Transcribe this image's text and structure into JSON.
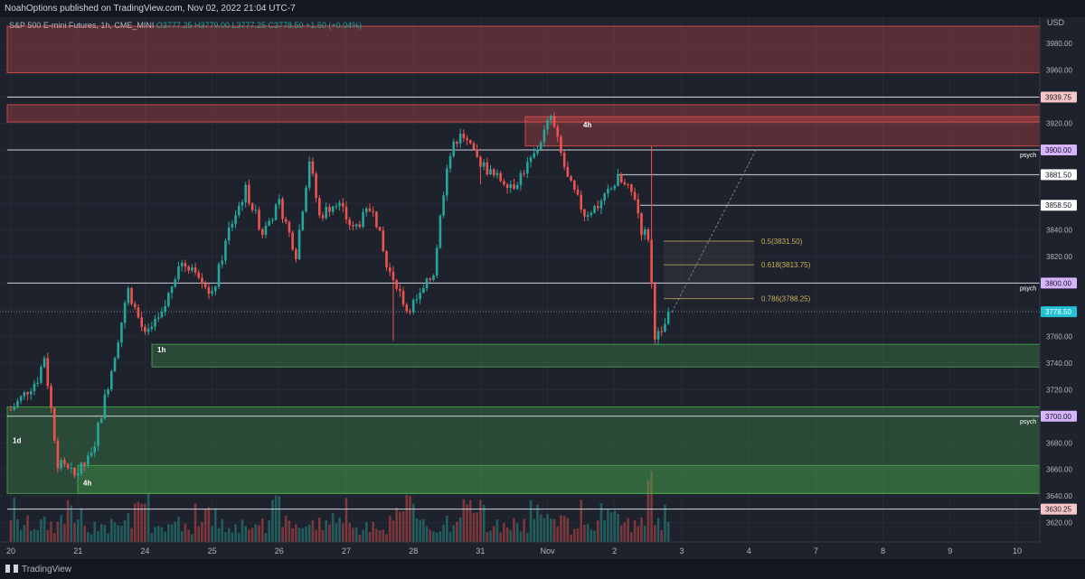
{
  "header": {
    "text": "NoahOptions published on TradingView.com, Nov 02, 2022 21:04 UTC-7"
  },
  "legend": {
    "symbol": "S&P 500 E-mini Futures, 1h, CME_MINI",
    "ohlc": "O3777.25 H3779.00 L3777.25 C3778.50 +1.50 (+0.04%)"
  },
  "footer": {
    "brand": "TradingView"
  },
  "colors": {
    "background": "#1e222d",
    "up": "#26a69a",
    "down": "#ef5350",
    "supply": "#ef5350",
    "demand": "#4caf50"
  },
  "chart_data": {
    "type": "candlestick",
    "currency_label": "USD",
    "ylim": [
      3613,
      3993
    ],
    "yticks": [
      3620,
      3640,
      3660,
      3680,
      3700,
      3720,
      3740,
      3760,
      3780,
      3800,
      3820,
      3840,
      3860,
      3880,
      3900,
      3920,
      3940,
      3960,
      3980
    ],
    "x_labels": [
      "20",
      "21",
      "24",
      "25",
      "26",
      "27",
      "28",
      "31",
      "Nov",
      "2",
      "3",
      "4",
      "7",
      "8",
      "9",
      "10"
    ],
    "x_label_bars": [
      0,
      20,
      40,
      60,
      80,
      100,
      120,
      140,
      160,
      180,
      200,
      220,
      240,
      260,
      280,
      300
    ],
    "last_bar_index": 196,
    "anchors": [
      [
        0,
        3705
      ],
      [
        8,
        3728
      ],
      [
        10,
        3745
      ],
      [
        14,
        3665
      ],
      [
        19,
        3655
      ],
      [
        24,
        3670
      ],
      [
        30,
        3735
      ],
      [
        35,
        3795
      ],
      [
        40,
        3760
      ],
      [
        45,
        3775
      ],
      [
        50,
        3815
      ],
      [
        55,
        3812
      ],
      [
        60,
        3790
      ],
      [
        65,
        3840
      ],
      [
        70,
        3870
      ],
      [
        75,
        3838
      ],
      [
        80,
        3860
      ],
      [
        85,
        3822
      ],
      [
        89,
        3893
      ],
      [
        92,
        3850
      ],
      [
        97,
        3862
      ],
      [
        102,
        3840
      ],
      [
        108,
        3858
      ],
      [
        112,
        3812
      ],
      [
        115,
        3800
      ],
      [
        118,
        3780
      ],
      [
        122,
        3790
      ],
      [
        126,
        3808
      ],
      [
        130,
        3890
      ],
      [
        134,
        3915
      ],
      [
        138,
        3896
      ],
      [
        144,
        3880
      ],
      [
        150,
        3874
      ],
      [
        156,
        3896
      ],
      [
        161,
        3925
      ],
      [
        166,
        3878
      ],
      [
        171,
        3852
      ],
      [
        176,
        3860
      ],
      [
        181,
        3878
      ],
      [
        186,
        3865
      ],
      [
        188,
        3840
      ],
      [
        190,
        3835
      ],
      [
        192,
        3762
      ],
      [
        194,
        3760
      ],
      [
        196,
        3778.5
      ]
    ],
    "wicks": [
      [
        114,
        3757
      ],
      [
        137,
        3904
      ],
      [
        140,
        3874
      ],
      [
        191,
        3903
      ]
    ],
    "levels": [
      {
        "price": 3939.75,
        "label": "3939.75",
        "label_color": "#f7c6c6"
      },
      {
        "price": 3900.0,
        "label": "3900.00",
        "tag": "psych",
        "label_color": "#d8b4fe"
      },
      {
        "price": 3881.5,
        "label": "3881.50",
        "label_color": "#ffffff"
      },
      {
        "price": 3858.5,
        "label": "3858.50",
        "label_color": "#ffffff"
      },
      {
        "price": 3800.0,
        "label": "3800.00",
        "tag": "psych",
        "label_color": "#d8b4fe"
      },
      {
        "price": 3700.0,
        "label": "3700.00",
        "tag": "psych",
        "label_color": "#d8b4fe"
      },
      {
        "price": 3630.25,
        "label": "3630.25",
        "label_color": "#f7c6c6"
      }
    ],
    "last_price": {
      "value": 3778.5,
      "label": "3778.50",
      "color": "#22c1d6"
    },
    "zones": [
      {
        "kind": "supply",
        "top": 3993,
        "bottom": 3958
      },
      {
        "kind": "supply",
        "top": 3934,
        "bottom": 3921
      },
      {
        "kind": "supply",
        "top": 3925,
        "bottom": 3903,
        "timeframe": "4h"
      },
      {
        "kind": "demand",
        "top": 3754,
        "bottom": 3737,
        "timeframe": "1h"
      },
      {
        "kind": "demand",
        "top": 3707,
        "bottom": 3642,
        "timeframe": "1d"
      },
      {
        "kind": "demand",
        "top": 3663,
        "bottom": 3642,
        "timeframe": "4h"
      }
    ],
    "fib": [
      {
        "ratio": "0.5",
        "price": 3831.5,
        "label": "0.5(3831.50)"
      },
      {
        "ratio": "0.618",
        "price": 3813.75,
        "label": "0.618(3813.75)"
      },
      {
        "ratio": "0.786",
        "price": 3788.25,
        "label": "0.786(3788.25)"
      }
    ]
  }
}
